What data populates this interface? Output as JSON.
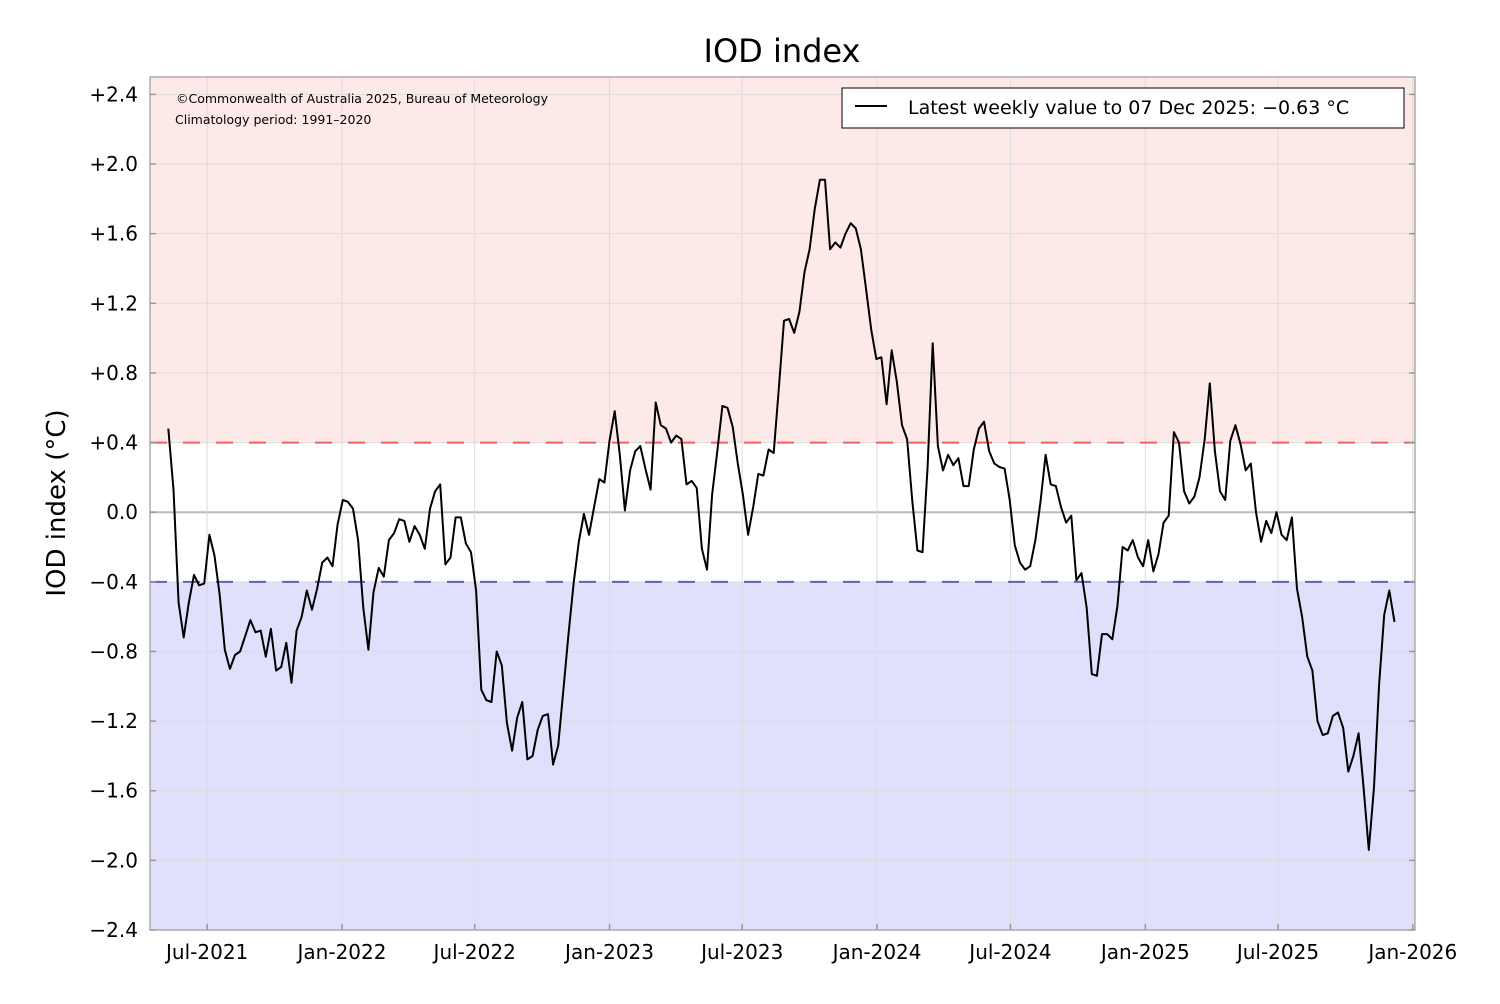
{
  "chart_data": {
    "type": "line",
    "title": "IOD index",
    "ylabel": "IOD index (°C)",
    "xlabel": "",
    "ylim": [
      -2.4,
      2.5
    ],
    "xlim": [
      "2021-04-14",
      "2026-01-04"
    ],
    "yticks": [
      -2.4,
      -2.0,
      -1.6,
      -1.2,
      -0.8,
      -0.4,
      0.0,
      0.4,
      0.8,
      1.2,
      1.6,
      2.0,
      2.4
    ],
    "ytick_labels": [
      "−2.4",
      "−2.0",
      "−1.6",
      "−1.2",
      "−0.8",
      "−0.4",
      "0.0",
      "+0.4",
      "+0.8",
      "+1.2",
      "+1.6",
      "+2.0",
      "+2.4"
    ],
    "xticks": [
      "2021-07-01",
      "2022-01-01",
      "2022-07-01",
      "2023-01-01",
      "2023-07-01",
      "2024-01-01",
      "2024-07-01",
      "2025-01-01",
      "2025-07-01",
      "2026-01-01"
    ],
    "xtick_labels": [
      "Jul-2021",
      "Jan-2022",
      "Jul-2022",
      "Jan-2023",
      "Jul-2023",
      "Jan-2024",
      "Jul-2024",
      "Jan-2025",
      "Jul-2025",
      "Jan-2026"
    ],
    "grid": true,
    "thresholds": {
      "positive": 0.4,
      "negative": -0.4
    },
    "colors": {
      "positive_region": "#fee9e9",
      "negative_region": "#e0e0fc",
      "positive_line": "#f06060",
      "negative_line": "#6060b8",
      "series": "#000000"
    },
    "legend": {
      "placement": "top-right",
      "label": "Latest weekly value to 07 Dec 2025: −0.63 °C"
    },
    "annotations": [
      "©Commonwealth of Australia 2025, Bureau of Meteorology",
      "Climatology period: 1991–2020"
    ],
    "series": [
      {
        "frequency": "weekly",
        "first_date": "2021-05-09",
        "last_date": "2025-12-07",
        "values": [
          0.48,
          0.13,
          -0.52,
          -0.72,
          -0.52,
          -0.36,
          -0.42,
          -0.41,
          -0.13,
          -0.25,
          -0.47,
          -0.79,
          -0.9,
          -0.82,
          -0.8,
          -0.71,
          -0.62,
          -0.69,
          -0.68,
          -0.83,
          -0.67,
          -0.91,
          -0.89,
          -0.75,
          -0.98,
          -0.68,
          -0.6,
          -0.45,
          -0.56,
          -0.44,
          -0.29,
          -0.26,
          -0.31,
          -0.07,
          0.07,
          0.06,
          0.02,
          -0.16,
          -0.55,
          -0.79,
          -0.46,
          -0.32,
          -0.37,
          -0.16,
          -0.12,
          -0.04,
          -0.05,
          -0.17,
          -0.08,
          -0.13,
          -0.21,
          0.02,
          0.12,
          0.16,
          -0.3,
          -0.26,
          -0.03,
          -0.03,
          -0.18,
          -0.23,
          -0.45,
          -1.02,
          -1.08,
          -1.09,
          -0.8,
          -0.88,
          -1.21,
          -1.37,
          -1.18,
          -1.09,
          -1.42,
          -1.4,
          -1.25,
          -1.17,
          -1.16,
          -1.45,
          -1.34,
          -1.02,
          -0.7,
          -0.41,
          -0.17,
          -0.01,
          -0.13,
          0.03,
          0.19,
          0.17,
          0.41,
          0.58,
          0.33,
          0.01,
          0.24,
          0.35,
          0.38,
          0.25,
          0.13,
          0.63,
          0.5,
          0.48,
          0.4,
          0.44,
          0.42,
          0.16,
          0.18,
          0.14,
          -0.21,
          -0.33,
          0.1,
          0.35,
          0.61,
          0.6,
          0.49,
          0.28,
          0.1,
          -0.13,
          0.03,
          0.22,
          0.21,
          0.36,
          0.34,
          0.71,
          1.1,
          1.11,
          1.03,
          1.15,
          1.38,
          1.51,
          1.74,
          1.91,
          1.91,
          1.51,
          1.55,
          1.52,
          1.6,
          1.66,
          1.63,
          1.51,
          1.28,
          1.05,
          0.88,
          0.89,
          0.62,
          0.93,
          0.75,
          0.5,
          0.42,
          0.07,
          -0.22,
          -0.23,
          0.26,
          0.97,
          0.38,
          0.24,
          0.33,
          0.27,
          0.31,
          0.15,
          0.15,
          0.36,
          0.48,
          0.52,
          0.35,
          0.28,
          0.26,
          0.25,
          0.07,
          -0.19,
          -0.29,
          -0.33,
          -0.31,
          -0.16,
          0.06,
          0.33,
          0.16,
          0.15,
          0.03,
          -0.06,
          -0.02,
          -0.39,
          -0.35,
          -0.55,
          -0.93,
          -0.94,
          -0.7,
          -0.7,
          -0.73,
          -0.54,
          -0.2,
          -0.22,
          -0.16,
          -0.26,
          -0.31,
          -0.16,
          -0.34,
          -0.24,
          -0.06,
          -0.02,
          0.46,
          0.4,
          0.12,
          0.05,
          0.09,
          0.2,
          0.42,
          0.74,
          0.35,
          0.12,
          0.07,
          0.41,
          0.5,
          0.39,
          0.24,
          0.28,
          0.0,
          -0.17,
          -0.05,
          -0.12,
          0.0,
          -0.13,
          -0.16,
          -0.03,
          -0.44,
          -0.6,
          -0.83,
          -0.91,
          -1.2,
          -1.28,
          -1.27,
          -1.17,
          -1.15,
          -1.24,
          -1.49,
          -1.4,
          -1.27,
          -1.59,
          -1.94,
          -1.58,
          -0.99,
          -0.59,
          -0.45,
          -0.63
        ]
      }
    ]
  }
}
